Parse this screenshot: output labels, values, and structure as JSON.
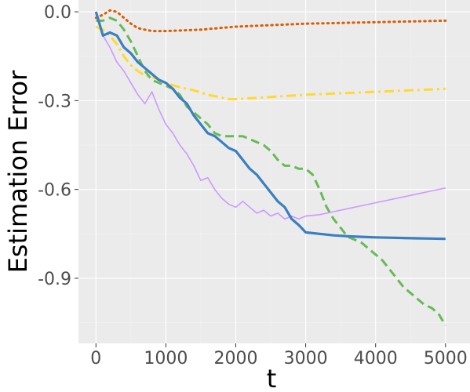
{
  "chart_data": {
    "type": "line",
    "title": "",
    "xlabel": "t",
    "ylabel": "Estimation Error",
    "xlim": [
      -250,
      5350
    ],
    "ylim": [
      -1.12,
      0.04
    ],
    "x_ticks": [
      0,
      1000,
      2000,
      3000,
      4000,
      5000
    ],
    "x_tick_labels": [
      "0",
      "1000",
      "2000",
      "3000",
      "4000",
      "5000"
    ],
    "y_ticks": [
      0.0,
      -0.3,
      -0.6,
      -0.9
    ],
    "y_tick_labels": [
      "0.0",
      "-0.3",
      "-0.6",
      "-0.9"
    ],
    "grid": true,
    "legend": "none",
    "colors": {
      "panel_background": "#ebebeb",
      "grid_major": "#ffffff",
      "grid_minor": "#f4f4f4"
    },
    "series": [
      {
        "color": "#d95f02",
        "style": "dotted",
        "width": 3,
        "x": [
          0,
          100,
          200,
          300,
          400,
          500,
          600,
          700,
          800,
          1000,
          1500,
          2000,
          3000,
          4000,
          5000
        ],
        "y": [
          -0.02,
          -0.01,
          0.005,
          0.0,
          -0.02,
          -0.04,
          -0.055,
          -0.06,
          -0.065,
          -0.065,
          -0.06,
          -0.05,
          -0.04,
          -0.035,
          -0.03
        ]
      },
      {
        "color": "#ffd92f",
        "style": "dashdot",
        "width": 3,
        "x": [
          0,
          100,
          200,
          300,
          400,
          500,
          600,
          700,
          800,
          900,
          1000,
          1200,
          1400,
          1600,
          1800,
          1900,
          2000,
          3000,
          4000,
          5000
        ],
        "y": [
          -0.05,
          -0.06,
          -0.08,
          -0.11,
          -0.15,
          -0.18,
          -0.2,
          -0.215,
          -0.22,
          -0.23,
          -0.24,
          -0.255,
          -0.265,
          -0.28,
          -0.29,
          -0.295,
          -0.295,
          -0.28,
          -0.27,
          -0.26
        ]
      },
      {
        "color": "#66bb55",
        "style": "dashed",
        "width": 3,
        "x": [
          0,
          100,
          200,
          300,
          400,
          500,
          600,
          700,
          800,
          900,
          1000,
          1100,
          1200,
          1300,
          1400,
          1500,
          1600,
          1700,
          1800,
          1900,
          2000,
          2100,
          2200,
          2300,
          2400,
          2500,
          2600,
          2700,
          2800,
          2900,
          3000,
          3100,
          3200,
          3300,
          3400,
          3500,
          3600,
          3700,
          3800,
          3900,
          4000,
          4100,
          4200,
          4300,
          4400,
          4500,
          4600,
          4700,
          4800,
          4900,
          5000
        ],
        "y": [
          -0.03,
          -0.03,
          -0.02,
          -0.03,
          -0.06,
          -0.1,
          -0.15,
          -0.2,
          -0.23,
          -0.24,
          -0.25,
          -0.26,
          -0.28,
          -0.32,
          -0.34,
          -0.36,
          -0.38,
          -0.41,
          -0.42,
          -0.42,
          -0.42,
          -0.42,
          -0.43,
          -0.44,
          -0.45,
          -0.47,
          -0.5,
          -0.52,
          -0.52,
          -0.53,
          -0.53,
          -0.55,
          -0.6,
          -0.66,
          -0.7,
          -0.73,
          -0.76,
          -0.77,
          -0.78,
          -0.8,
          -0.82,
          -0.84,
          -0.87,
          -0.9,
          -0.93,
          -0.95,
          -0.97,
          -0.99,
          -1.0,
          -1.02,
          -1.06
        ]
      },
      {
        "color": "#cc99ff",
        "style": "solid",
        "width": 1.6,
        "x": [
          0,
          100,
          200,
          300,
          400,
          500,
          600,
          700,
          800,
          900,
          1000,
          1100,
          1200,
          1300,
          1400,
          1500,
          1600,
          1700,
          1800,
          1900,
          2000,
          2100,
          2200,
          2300,
          2400,
          2500,
          2600,
          2700,
          2800,
          2900,
          3000,
          3200,
          3400,
          3600,
          3800,
          4000,
          4200,
          4400,
          4600,
          4800,
          5000
        ],
        "y": [
          0.0,
          -0.08,
          -0.12,
          -0.17,
          -0.2,
          -0.24,
          -0.28,
          -0.31,
          -0.27,
          -0.33,
          -0.38,
          -0.41,
          -0.45,
          -0.48,
          -0.52,
          -0.57,
          -0.56,
          -0.6,
          -0.63,
          -0.65,
          -0.66,
          -0.64,
          -0.66,
          -0.68,
          -0.67,
          -0.69,
          -0.68,
          -0.7,
          -0.69,
          -0.7,
          -0.69,
          -0.685,
          -0.675,
          -0.665,
          -0.655,
          -0.645,
          -0.635,
          -0.625,
          -0.615,
          -0.605,
          -0.595
        ]
      },
      {
        "color": "#3a7fbf",
        "style": "solid",
        "width": 3.2,
        "x": [
          0,
          100,
          200,
          300,
          400,
          500,
          600,
          700,
          800,
          900,
          1000,
          1100,
          1200,
          1300,
          1400,
          1500,
          1600,
          1700,
          1800,
          1900,
          2000,
          2100,
          2200,
          2300,
          2400,
          2500,
          2600,
          2700,
          2800,
          2900,
          3000,
          3200,
          3400,
          3600,
          3800,
          4000,
          4200,
          4400,
          4600,
          4800,
          5000
        ],
        "y": [
          0.0,
          -0.08,
          -0.07,
          -0.08,
          -0.12,
          -0.14,
          -0.17,
          -0.19,
          -0.21,
          -0.23,
          -0.24,
          -0.26,
          -0.29,
          -0.31,
          -0.35,
          -0.38,
          -0.41,
          -0.42,
          -0.44,
          -0.46,
          -0.47,
          -0.5,
          -0.53,
          -0.55,
          -0.58,
          -0.61,
          -0.64,
          -0.66,
          -0.7,
          -0.72,
          -0.745,
          -0.75,
          -0.755,
          -0.758,
          -0.76,
          -0.762,
          -0.763,
          -0.764,
          -0.765,
          -0.766,
          -0.767
        ]
      }
    ]
  }
}
